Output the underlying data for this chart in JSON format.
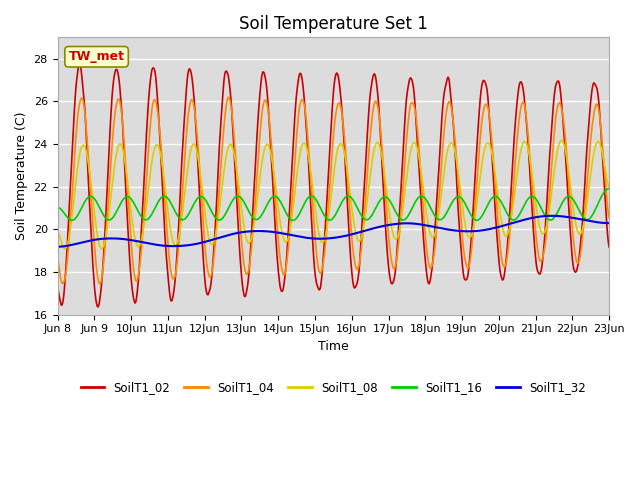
{
  "title": "Soil Temperature Set 1",
  "xlabel": "Time",
  "ylabel": "Soil Temperature (C)",
  "ylim": [
    16,
    29
  ],
  "yticks": [
    16,
    18,
    20,
    22,
    24,
    26,
    28
  ],
  "annotation_text": "TW_met",
  "bg_color": "#dcdcdc",
  "line_colors": {
    "SoilT1_02": "#cc0000",
    "SoilT1_04": "#ff8800",
    "SoilT1_08": "#ddcc00",
    "SoilT1_16": "#00cc00",
    "SoilT1_32": "#0000dd"
  },
  "title_fontsize": 12,
  "label_fontsize": 9,
  "tick_fontsize": 8,
  "figsize": [
    6.4,
    4.8
  ],
  "dpi": 100
}
